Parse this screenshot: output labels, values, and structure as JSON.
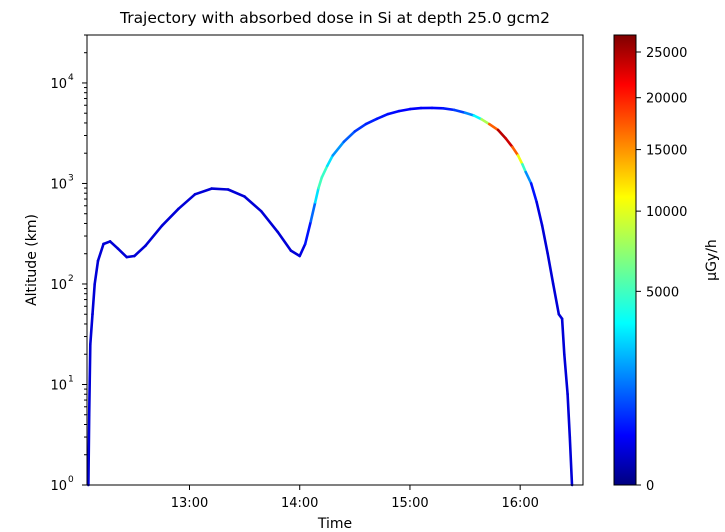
{
  "chart_data": {
    "type": "line",
    "title": "Trajectory with absorbed dose in Si at depth 25.0 gcm2",
    "xlabel": "Time",
    "ylabel": "Altitude (km)",
    "x_ticks": [
      "13:00",
      "14:00",
      "15:00",
      "16:00"
    ],
    "y_ticks": [
      {
        "base": "10",
        "exp": "0"
      },
      {
        "base": "10",
        "exp": "1"
      },
      {
        "base": "10",
        "exp": "2"
      },
      {
        "base": "10",
        "exp": "3"
      },
      {
        "base": "10",
        "exp": "4"
      }
    ],
    "xlim_hours": [
      12.07,
      16.57
    ],
    "ylim": [
      1,
      30000
    ],
    "yscale": "log",
    "colorbar": {
      "label": "μGy/h",
      "colormap": "jet",
      "ticks": [
        "0",
        "5000",
        "10000",
        "15000",
        "20000",
        "25000"
      ],
      "tick_values": [
        0,
        5000,
        10000,
        15000,
        20000,
        25000
      ],
      "range": [
        0,
        27000
      ],
      "scale": "sqrt"
    },
    "series": [
      {
        "points": [
          [
            12.083,
            1,
            200
          ],
          [
            12.09,
            5,
            200
          ],
          [
            12.1,
            25,
            200
          ],
          [
            12.12,
            50,
            200
          ],
          [
            12.14,
            100,
            200
          ],
          [
            12.17,
            170,
            200
          ],
          [
            12.22,
            250,
            200
          ],
          [
            12.28,
            265,
            200
          ],
          [
            12.35,
            225,
            200
          ],
          [
            12.43,
            185,
            200
          ],
          [
            12.5,
            190,
            200
          ],
          [
            12.6,
            240,
            200
          ],
          [
            12.75,
            380,
            200
          ],
          [
            12.9,
            560,
            200
          ],
          [
            13.05,
            780,
            200
          ],
          [
            13.2,
            890,
            200
          ],
          [
            13.35,
            870,
            200
          ],
          [
            13.5,
            740,
            200
          ],
          [
            13.65,
            530,
            200
          ],
          [
            13.8,
            330,
            200
          ],
          [
            13.92,
            215,
            200
          ],
          [
            14.0,
            190,
            200
          ],
          [
            14.05,
            250,
            300
          ],
          [
            14.1,
            420,
            800
          ],
          [
            14.14,
            650,
            2000
          ],
          [
            14.17,
            900,
            4500
          ],
          [
            14.2,
            1150,
            6000
          ],
          [
            14.25,
            1500,
            4000
          ],
          [
            14.3,
            1900,
            2500
          ],
          [
            14.4,
            2600,
            1500
          ],
          [
            14.5,
            3300,
            1000
          ],
          [
            14.6,
            3900,
            700
          ],
          [
            14.7,
            4400,
            600
          ],
          [
            14.8,
            4900,
            500
          ],
          [
            14.9,
            5250,
            450
          ],
          [
            15.0,
            5500,
            400
          ],
          [
            15.1,
            5620,
            400
          ],
          [
            15.2,
            5650,
            400
          ],
          [
            15.3,
            5600,
            500
          ],
          [
            15.4,
            5400,
            700
          ],
          [
            15.5,
            5050,
            1200
          ],
          [
            15.58,
            4750,
            2500
          ],
          [
            15.65,
            4350,
            5000
          ],
          [
            15.72,
            3900,
            11000
          ],
          [
            15.8,
            3400,
            22000
          ],
          [
            15.87,
            2800,
            26000
          ],
          [
            15.93,
            2300,
            20000
          ],
          [
            15.98,
            1900,
            13000
          ],
          [
            16.02,
            1550,
            7000
          ],
          [
            16.05,
            1300,
            3000
          ],
          [
            16.1,
            1000,
            800
          ],
          [
            16.15,
            650,
            300
          ],
          [
            16.2,
            380,
            200
          ],
          [
            16.25,
            200,
            200
          ],
          [
            16.3,
            100,
            200
          ],
          [
            16.35,
            50,
            200
          ],
          [
            16.38,
            45,
            200
          ],
          [
            16.4,
            20,
            200
          ],
          [
            16.43,
            8,
            200
          ],
          [
            16.45,
            3,
            200
          ],
          [
            16.47,
            1,
            200
          ]
        ]
      }
    ]
  }
}
